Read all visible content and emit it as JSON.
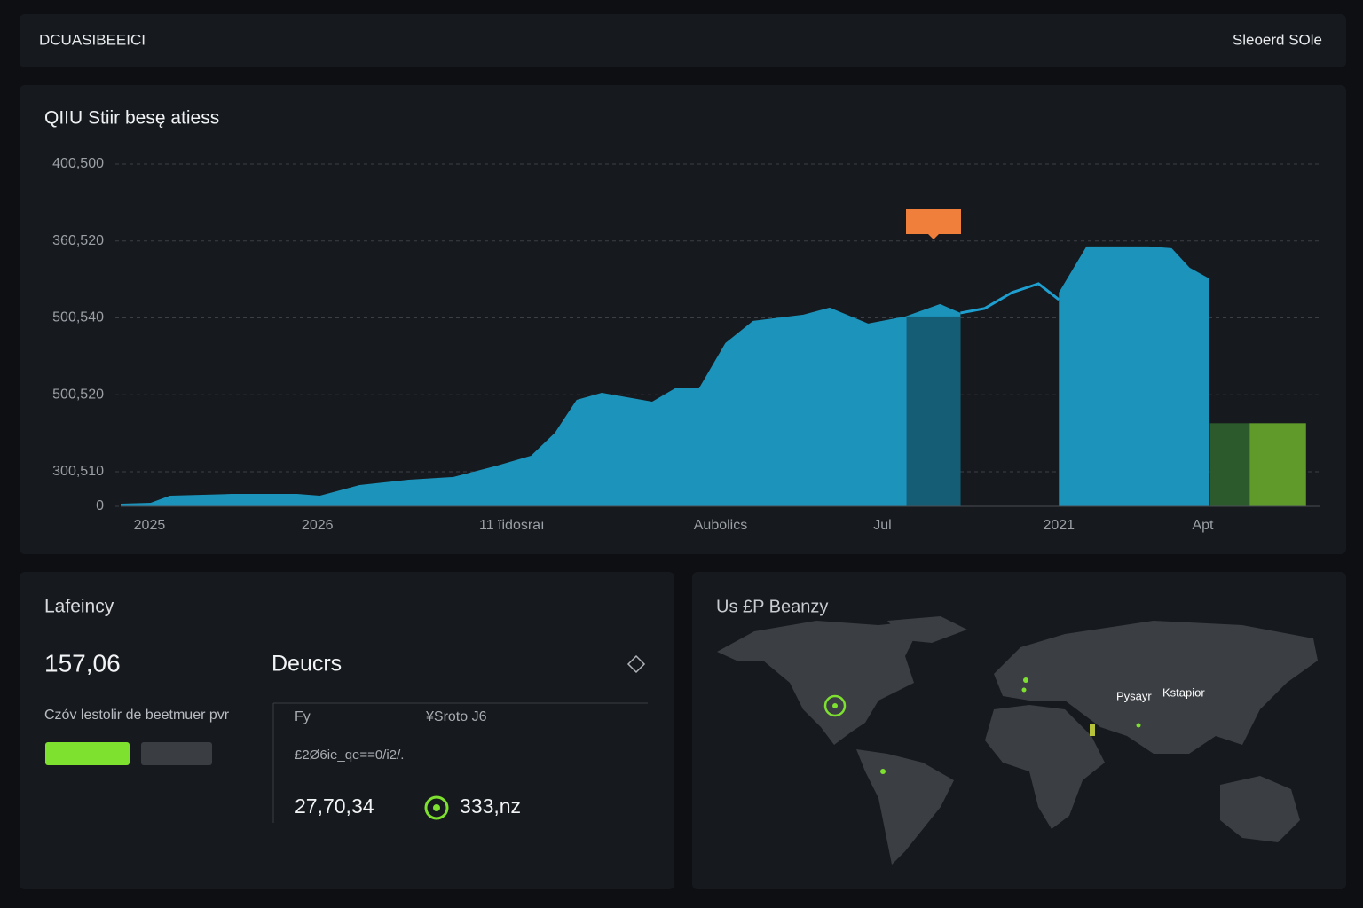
{
  "header": {
    "title": "DCUASIBEEICI",
    "user": "Sleoerd SOle"
  },
  "chart_data": {
    "type": "area",
    "title": "QIIU Stiir besę atiess",
    "xlim": [
      0,
      100
    ],
    "xticks": [
      {
        "value": 2.4,
        "label": "2025"
      },
      {
        "value": 16.4,
        "label": "2026"
      },
      {
        "value": 32.6,
        "label": "11 ïidosraı"
      },
      {
        "value": 50,
        "label": "Aubolics"
      },
      {
        "value": 63.5,
        "label": "Jul"
      },
      {
        "value": 78.2,
        "label": "2021"
      },
      {
        "value": 90.2,
        "label": "Apt"
      }
    ],
    "ylim": [
      0,
      445
    ],
    "yticks": [
      0,
      {
        "value": 45,
        "label": "300,510"
      },
      {
        "value": 145,
        "label": "500,520"
      },
      {
        "value": 245,
        "label": "500,540"
      },
      {
        "value": 345,
        "label": "360,520"
      },
      {
        "value": 445,
        "label": "400,500"
      }
    ],
    "grid": true,
    "series": [
      {
        "type": "area",
        "color": "#1b93bb",
        "x": [
          0,
          2.5,
          4.1,
          9.2,
          14.7,
          16.6,
          19.9,
          24.0,
          27.7,
          31.4,
          34.2,
          36.2,
          38.0,
          40.1,
          44.3,
          46.2,
          48.2,
          50.4,
          52.7,
          56.9,
          59.1,
          62.3,
          65.4,
          68.3,
          70.0
        ],
        "values": [
          3.5,
          4.6,
          13.8,
          16.1,
          16.1,
          13.8,
          27.7,
          34.6,
          38.1,
          53.1,
          65.7,
          95.7,
          138.4,
          147.6,
          136.1,
          153.4,
          153.4,
          212.2,
          241.1,
          249.1,
          258.4,
          237.6,
          246.8,
          263.0,
          251.4
        ]
      },
      {
        "type": "line",
        "color": "#1f9fd0",
        "x": [
          70.0,
          72.0,
          74.3,
          76.5,
          78.2
        ],
        "values": [
          251.4,
          257.2,
          278.0,
          289.5,
          268.7
        ]
      },
      {
        "type": "area",
        "color": "#1b93bb",
        "x": [
          78.2,
          80.5,
          85.7,
          87.6,
          89.1,
          90.7
        ],
        "values": [
          278.0,
          337.9,
          337.9,
          335.6,
          310.3,
          296.4
        ]
      }
    ],
    "highlight": {
      "x": [
        65.5,
        70.0
      ],
      "value": 246.8,
      "color": "#155d75"
    },
    "bars": [
      {
        "x": [
          90.8,
          94.1
        ],
        "value": 108,
        "color": "#2c5a2c"
      },
      {
        "x": [
          94.1,
          98.8
        ],
        "value": 108,
        "color": "#5f9a2b"
      }
    ]
  },
  "latency": {
    "title": "Lafeincy",
    "value": "157,06",
    "caption": "Czóv lestolir de beetmuer pvr",
    "devices_title": "Deucrs",
    "table": {
      "header": [
        "Fy",
        "¥Sroto J6"
      ],
      "note": "£2Ø6ie_qe==0/i2/.",
      "cells": [
        "27,70,34",
        "333,nz"
      ]
    }
  },
  "map": {
    "title": "Us £P Beanzy",
    "labels": [
      "Pysayr",
      "Kstapior"
    ]
  }
}
